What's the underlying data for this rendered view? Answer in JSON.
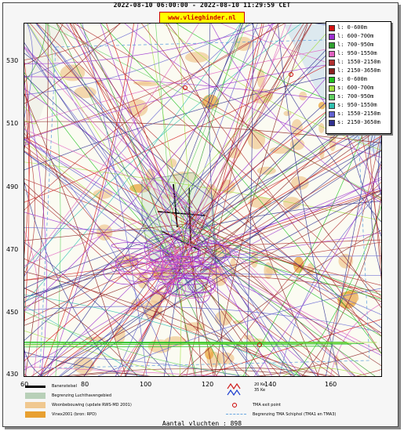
{
  "header": {
    "title": "2022-08-10 06:00:00 - 2022-08-10 11:29:59 CET",
    "site_label": "www.vlieghinder.nl"
  },
  "axes": {
    "y_ticks": [
      "530",
      "510",
      "490",
      "470",
      "450",
      "430"
    ],
    "x_ticks": [
      "60",
      "80",
      "100",
      "120",
      "140",
      "160"
    ]
  },
  "legend": {
    "items": [
      {
        "label": "l: 0-600m",
        "color": "#d01010"
      },
      {
        "label": "l: 600-700m",
        "color": "#9b30d0"
      },
      {
        "label": "l: 700-950m",
        "color": "#30a030"
      },
      {
        "label": "l: 950-1550m",
        "color": "#e060c0"
      },
      {
        "label": "l: 1550-2150m",
        "color": "#b03030"
      },
      {
        "label": "l: 2150-3650m",
        "color": "#8a2020"
      },
      {
        "label": "s: 0-600m",
        "color": "#20c020"
      },
      {
        "label": "s: 600-700m",
        "color": "#a0e040"
      },
      {
        "label": "s: 700-950m",
        "color": "#60d060"
      },
      {
        "label": "s: 950-1550m",
        "color": "#30c0b0"
      },
      {
        "label": "s: 1550-2150m",
        "color": "#6060d0"
      },
      {
        "label": "s: 2150-3650m",
        "color": "#303090"
      }
    ]
  },
  "bottom_legend": {
    "left": [
      {
        "label": "Banenstelsel",
        "color": "#000000"
      },
      {
        "label": "Begrenzing Luchthavengebied",
        "color": "#b8d0b8"
      },
      {
        "label": "Woonbebouwing (update RWS-MD 2001)",
        "color": "#f0c890"
      },
      {
        "label": "Vinex2001 (bron: RPD)",
        "color": "#e8a030"
      }
    ],
    "right": [
      {
        "label": "20 Ke\n35 Ke"
      },
      {
        "label": "TMA exit point"
      },
      {
        "label": "Begrenzing TMA Schiphol  (TMA1 en TMA3)"
      }
    ],
    "contour_20": "20 Ke",
    "contour_35": "35 Ke",
    "tma_exit": "TMA exit point",
    "tma_border": "Begrenzing TMA Schiphol  (TMA1 en TMA3)"
  },
  "footer": {
    "count_text": "Aantal vluchten : 898"
  }
}
